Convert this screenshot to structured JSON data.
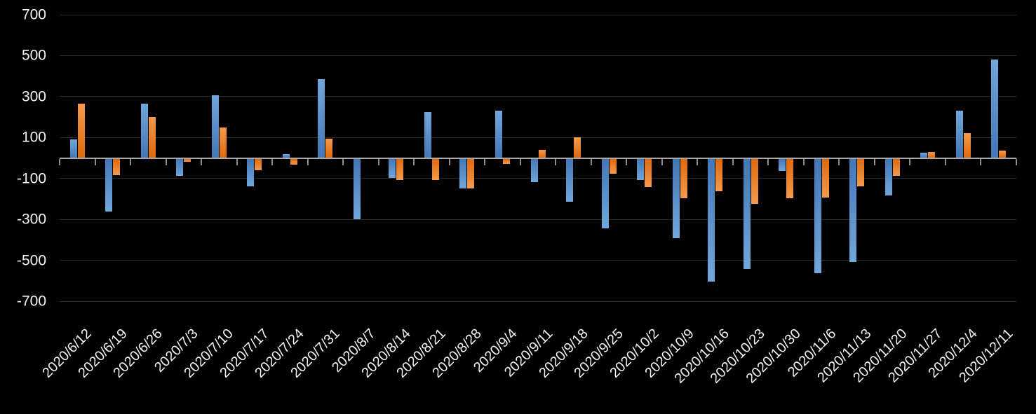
{
  "chart_data": {
    "type": "bar",
    "title": "",
    "xlabel": "",
    "ylabel": "",
    "legend": "none",
    "grid": true,
    "ylim": [
      -700,
      700
    ],
    "yticks": [
      700,
      500,
      300,
      100,
      -100,
      -300,
      -500,
      -700
    ],
    "categories": [
      "2020/6/12",
      "2020/6/19",
      "2020/6/26",
      "2020/7/3",
      "2020/7/10",
      "2020/7/17",
      "2020/7/24",
      "2020/7/31",
      "2020/8/7",
      "2020/8/14",
      "2020/8/21",
      "2020/8/28",
      "2020/9/4",
      "2020/9/11",
      "2020/9/18",
      "2020/9/25",
      "2020/10/2",
      "2020/10/9",
      "2020/10/16",
      "2020/10/23",
      "2020/10/30",
      "2020/11/6",
      "2020/11/13",
      "2020/11/20",
      "2020/11/27",
      "2020/12/4",
      "2020/12/11"
    ],
    "series": [
      {
        "name": "blue",
        "values": [
          90,
          -260,
          265,
          -85,
          305,
          -135,
          20,
          385,
          -295,
          -95,
          225,
          -145,
          230,
          -115,
          -210,
          -340,
          -105,
          -390,
          -600,
          -540,
          -60,
          -560,
          -505,
          -180,
          25,
          230,
          480
        ]
      },
      {
        "name": "orange",
        "values": [
          265,
          -80,
          200,
          -15,
          150,
          -55,
          -30,
          95,
          0,
          -105,
          -105,
          -145,
          -25,
          40,
          100,
          -75,
          -140,
          -195,
          -160,
          -220,
          -195,
          -190,
          -135,
          -85,
          30,
          120,
          35
        ]
      }
    ],
    "colors": {
      "background": "#000000",
      "blue_light": "#6FA8DC",
      "blue_dark": "#4377B5",
      "orange_light": "#F49A4D",
      "orange_dark": "#DE690D",
      "axis_line": "#A9A9A9",
      "tick": "#8C8C8C",
      "gridline": "#2B2B2B",
      "label": "#F2F2F2"
    }
  }
}
